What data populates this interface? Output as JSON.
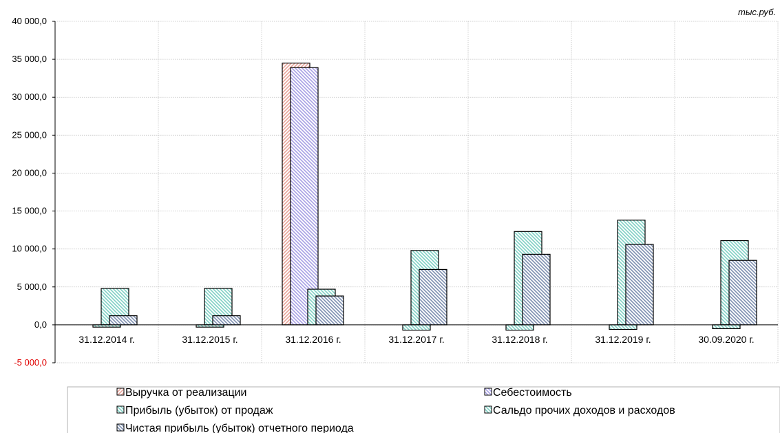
{
  "units_label": "тыс.руб.",
  "colors": {
    "revenue": "#e8a49a",
    "cost": "#a7a0e4",
    "gross_profit": "#7fd0c4",
    "other_balance": "#7fd0c4",
    "net_profit": "#7d8fb0",
    "negative_tick": "#e00000",
    "grid": "#c0c0c0"
  },
  "chart_data": {
    "type": "bar",
    "units": "тыс.руб.",
    "categories": [
      "31.12.2014 г.",
      "31.12.2015 г.",
      "31.12.2016 г.",
      "31.12.2017 г.",
      "31.12.2018 г.",
      "31.12.2019 г.",
      "30.09.2020 г."
    ],
    "y_ticks": [
      "40 000,0",
      "35 000,0",
      "30 000,0",
      "25 000,0",
      "20 000,0",
      "15 000,0",
      "10 000,0",
      "5 000,0",
      "0,0",
      "-5 000,0"
    ],
    "ylim": [
      -5000,
      40000
    ],
    "grid": true,
    "legend_position": "bottom",
    "series": [
      {
        "name": "Выручка от реализации",
        "values": [
          0,
          0,
          34500,
          0,
          0,
          0,
          0
        ]
      },
      {
        "name": "Себестоимость",
        "values": [
          0,
          0,
          33900,
          0,
          0,
          0,
          0
        ]
      },
      {
        "name": "Прибыль (убыток) от продаж",
        "values": [
          4800,
          4800,
          4700,
          9800,
          12300,
          13800,
          11100
        ]
      },
      {
        "name": "Сальдо прочих доходов и расходов",
        "values": [
          -300,
          -300,
          0,
          -700,
          -700,
          -600,
          -500
        ]
      },
      {
        "name": "Чистая прибыль (убыток) отчетного периода",
        "values": [
          1200,
          1200,
          3800,
          7300,
          9300,
          10600,
          8500
        ]
      }
    ]
  }
}
